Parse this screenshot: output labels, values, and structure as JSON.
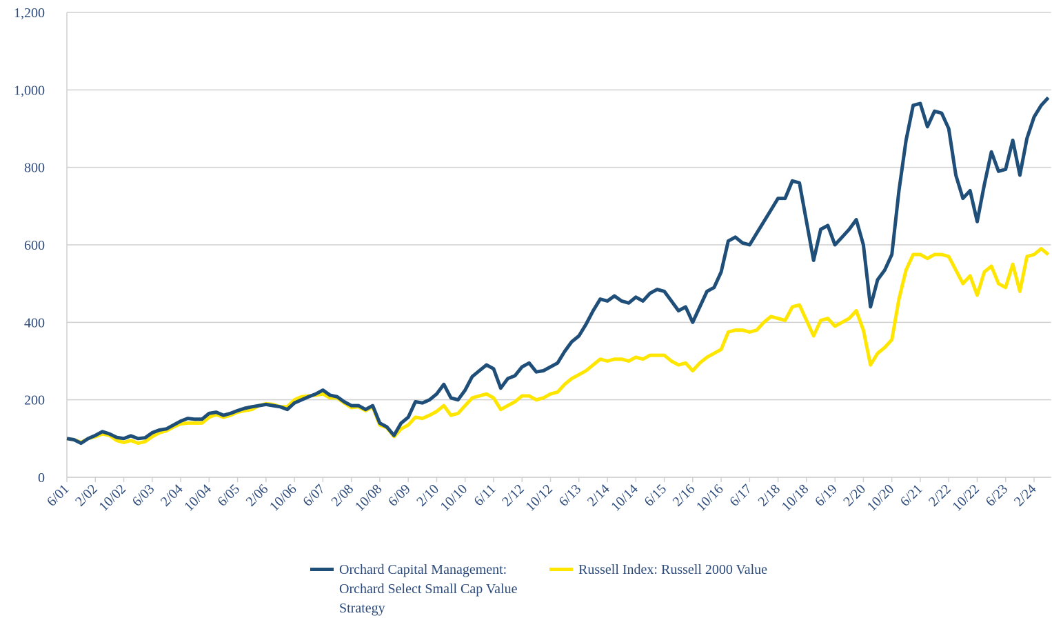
{
  "chart_data": {
    "type": "line",
    "categories": [
      "6/01",
      null,
      null,
      null,
      "2/02",
      null,
      null,
      null,
      "10/02",
      null,
      null,
      null,
      "6/03",
      null,
      null,
      null,
      "2/04",
      null,
      null,
      null,
      "10/04",
      null,
      null,
      null,
      "6/05",
      null,
      null,
      null,
      "2/06",
      null,
      null,
      null,
      "10/06",
      null,
      null,
      null,
      "6/07",
      null,
      null,
      null,
      "2/08",
      null,
      null,
      null,
      "10/08",
      null,
      null,
      null,
      "6/09",
      null,
      null,
      null,
      "2/10",
      null,
      null,
      null,
      "10/10",
      null,
      null,
      null,
      "6/11",
      null,
      null,
      null,
      "2/12",
      null,
      null,
      null,
      "10/12",
      null,
      null,
      null,
      "6/13",
      null,
      null,
      null,
      "2/14",
      null,
      null,
      null,
      "10/14",
      null,
      null,
      null,
      "6/15",
      null,
      null,
      null,
      "2/16",
      null,
      null,
      null,
      "10/16",
      null,
      null,
      null,
      "6/17",
      null,
      null,
      null,
      "2/18",
      null,
      null,
      null,
      "10/18",
      null,
      null,
      null,
      "6/19",
      null,
      null,
      null,
      "2/20",
      null,
      null,
      null,
      "10/20",
      null,
      null,
      null,
      "6/21",
      null,
      null,
      null,
      "2/22",
      null,
      null,
      null,
      "10/22",
      null,
      null,
      null,
      "6/23",
      null,
      null,
      null,
      "2/24",
      null,
      null
    ],
    "series": [
      {
        "name": "Orchard Capital Management: Orchard Select Small Cap Value Strategy",
        "color": "#1f4e79",
        "values": [
          100,
          97,
          88,
          100,
          108,
          118,
          112,
          103,
          100,
          107,
          100,
          102,
          115,
          122,
          125,
          135,
          145,
          152,
          150,
          150,
          165,
          168,
          160,
          165,
          172,
          178,
          182,
          185,
          188,
          185,
          182,
          175,
          192,
          200,
          208,
          215,
          225,
          212,
          208,
          195,
          185,
          185,
          175,
          185,
          140,
          130,
          108,
          140,
          155,
          195,
          192,
          200,
          215,
          240,
          205,
          200,
          225,
          260,
          275,
          290,
          280,
          230,
          255,
          262,
          285,
          295,
          272,
          275,
          285,
          295,
          325,
          350,
          365,
          395,
          430,
          460,
          455,
          468,
          455,
          450,
          465,
          455,
          475,
          485,
          480,
          455,
          430,
          440,
          400,
          440,
          480,
          490,
          530,
          610,
          620,
          605,
          600,
          630,
          660,
          690,
          720,
          720,
          765,
          760,
          660,
          560,
          640,
          650,
          600,
          620,
          640,
          665,
          600,
          440,
          510,
          535,
          575,
          740,
          870,
          960,
          965,
          905,
          945,
          940,
          900,
          780,
          720,
          740,
          660,
          755,
          840,
          790,
          795,
          870,
          780,
          875,
          930,
          960,
          980
        ]
      },
      {
        "name": "Russell Index: Russell 2000 Value",
        "color": "#ffe600",
        "values": [
          100,
          97,
          90,
          100,
          105,
          112,
          108,
          95,
          90,
          95,
          88,
          92,
          105,
          115,
          120,
          130,
          138,
          140,
          140,
          140,
          155,
          162,
          155,
          160,
          168,
          172,
          175,
          185,
          190,
          188,
          182,
          182,
          200,
          208,
          210,
          212,
          215,
          205,
          205,
          192,
          180,
          182,
          172,
          182,
          135,
          128,
          105,
          125,
          135,
          155,
          152,
          160,
          170,
          185,
          160,
          165,
          185,
          205,
          210,
          215,
          205,
          175,
          185,
          195,
          210,
          210,
          200,
          205,
          215,
          220,
          240,
          255,
          265,
          275,
          290,
          305,
          300,
          305,
          305,
          300,
          310,
          305,
          315,
          315,
          315,
          300,
          290,
          295,
          275,
          295,
          310,
          320,
          330,
          375,
          380,
          380,
          375,
          380,
          400,
          415,
          410,
          405,
          440,
          445,
          405,
          365,
          405,
          410,
          390,
          400,
          410,
          430,
          380,
          290,
          320,
          335,
          355,
          460,
          535,
          575,
          575,
          565,
          575,
          575,
          570,
          535,
          500,
          520,
          470,
          530,
          545,
          500,
          490,
          550,
          480,
          570,
          575,
          590,
          575
        ]
      }
    ],
    "ylim": [
      0,
      1200
    ],
    "yticks": [
      0,
      200,
      400,
      600,
      800,
      {
        "value": 1000,
        "label": "1,000"
      },
      {
        "value": 1200,
        "label": "1,200"
      }
    ],
    "grid": true
  }
}
